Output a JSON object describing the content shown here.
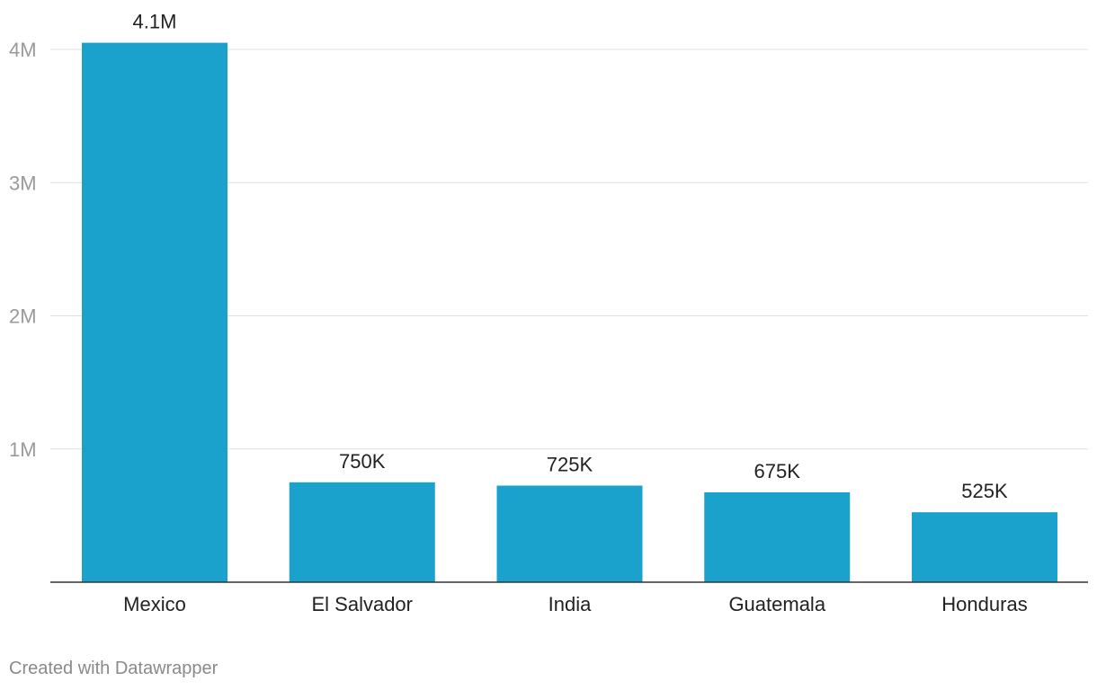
{
  "chart_data": {
    "type": "bar",
    "categories": [
      "Mexico",
      "El Salvador",
      "India",
      "Guatemala",
      "Honduras"
    ],
    "values": [
      4050000,
      750000,
      725000,
      675000,
      525000
    ],
    "value_labels": [
      "4.1M",
      "750K",
      "725K",
      "675K",
      "525K"
    ],
    "yticks": [
      1000000,
      2000000,
      3000000,
      4000000
    ],
    "ytick_labels": [
      "1M",
      "2M",
      "3M",
      "4M"
    ],
    "ylim": [
      0,
      4000000
    ],
    "grid": true,
    "bar_color": "#1aa1cc",
    "title": "",
    "xlabel": "",
    "ylabel": ""
  },
  "footer": {
    "credit": "Created with Datawrapper"
  }
}
